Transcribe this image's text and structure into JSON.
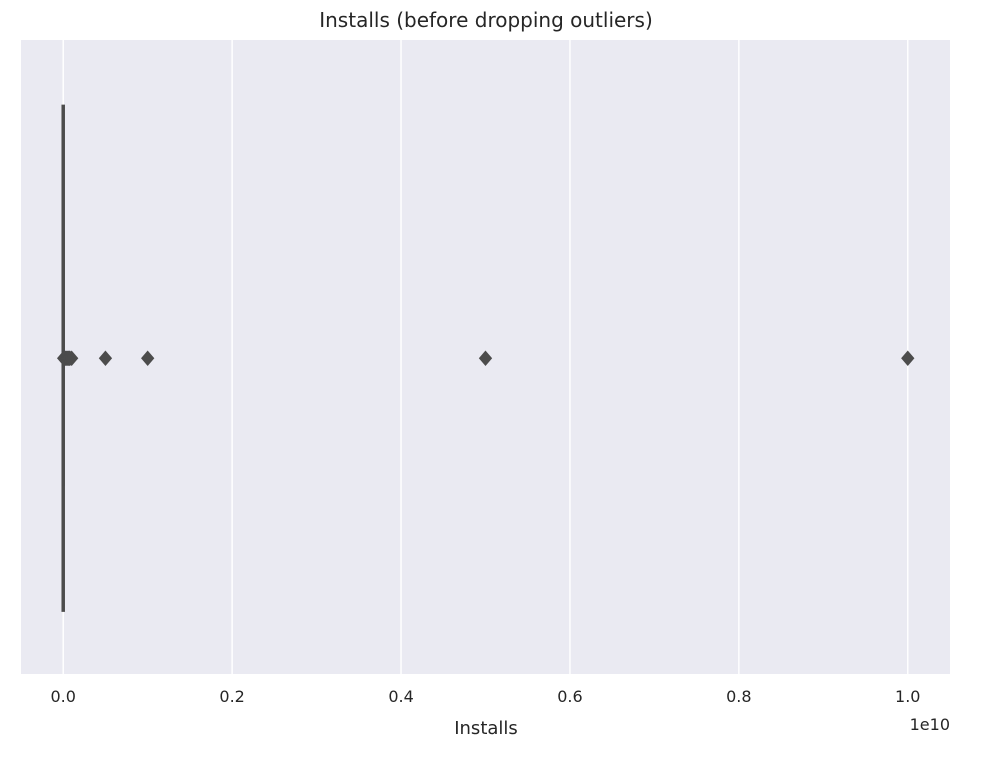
{
  "chart_data": {
    "type": "box",
    "title": "Installs (before dropping outliers)",
    "xlabel": "Installs",
    "ylabel": "",
    "x_offset_label": "1e10",
    "xlim": [
      -0.05,
      1.05
    ],
    "xticks": [
      {
        "value": 0.0,
        "label": "0.0"
      },
      {
        "value": 0.2,
        "label": "0.2"
      },
      {
        "value": 0.4,
        "label": "0.4"
      },
      {
        "value": 0.6,
        "label": "0.6"
      },
      {
        "value": 0.8,
        "label": "0.8"
      },
      {
        "value": 1.0,
        "label": "1.0"
      }
    ],
    "grid": true,
    "box": {
      "q1": 0.0,
      "median": 0.0,
      "q3": 0.0,
      "whisker_low": 0.0,
      "whisker_high": 0.0
    },
    "outliers": [
      0.0005,
      0.001,
      0.0015,
      0.002,
      0.003,
      0.004,
      0.005,
      0.006,
      0.007,
      0.008,
      0.01,
      0.05,
      0.1,
      0.5,
      1.0
    ],
    "colors": {
      "background": "#eaeaf2",
      "grid": "#ffffff",
      "box": "#4c4c4c",
      "outlier": "#4c4c4c"
    }
  }
}
